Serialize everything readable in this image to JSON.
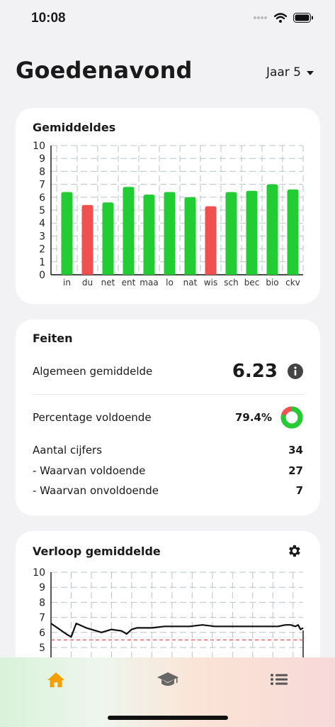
{
  "status": {
    "time": "10:08"
  },
  "header": {
    "greeting": "Goedenavond",
    "year": "Jaar 5"
  },
  "averages": {
    "title": "Gemiddeldes"
  },
  "facts": {
    "title": "Feiten",
    "overall_label": "Algemeen gemiddelde",
    "overall_value": "6.23",
    "percent_label": "Percentage voldoende",
    "percent_value": "79.4%",
    "percent_fraction": 0.794,
    "count_label": "Aantal cijfers",
    "count_value": "34",
    "pass_label": "- Waarvan voldoende",
    "pass_value": "27",
    "fail_label": "- Waarvan onvoldoende",
    "fail_value": "7"
  },
  "trend": {
    "title": "Verloop gemiddelde"
  },
  "colors": {
    "pass": "#22cc33",
    "fail": "#f05050",
    "accent": "#f5a000",
    "grid": "#b9c3c9"
  },
  "icons": {
    "status": [
      "signal-icon",
      "wifi-icon",
      "battery-icon"
    ],
    "info": "info-icon",
    "settings": "gear-icon",
    "tabs": [
      "home-icon",
      "graduation-cap-icon",
      "list-icon"
    ]
  },
  "chart_data": [
    {
      "type": "bar",
      "categories": [
        "in",
        "du",
        "net",
        "ent",
        "maa",
        "lo",
        "nat",
        "wis",
        "sch",
        "bec",
        "bio",
        "ckv"
      ],
      "values": [
        6.4,
        5.4,
        5.6,
        6.8,
        6.2,
        6.4,
        6.0,
        5.3,
        6.4,
        6.5,
        7.0,
        6.6
      ],
      "ylim": [
        0,
        10
      ],
      "yticks": [
        "0",
        "1",
        "2",
        "3",
        "4",
        "5",
        "6",
        "7",
        "8",
        "9",
        "10"
      ],
      "grid": true,
      "pass_threshold": 5.5
    },
    {
      "type": "line",
      "x": [
        0,
        0.06,
        0.08,
        0.1,
        0.14,
        0.2,
        0.24,
        0.28,
        0.3,
        0.32,
        0.34,
        0.36,
        0.4,
        0.45,
        0.5,
        0.55,
        0.6,
        0.65,
        0.7,
        0.75,
        0.8,
        0.85,
        0.9,
        0.93,
        0.95,
        0.97,
        0.98,
        0.99,
        1.0
      ],
      "values": [
        6.6,
        5.9,
        5.7,
        6.6,
        6.3,
        6.0,
        6.2,
        6.1,
        5.9,
        6.2,
        6.3,
        6.3,
        6.3,
        6.4,
        6.4,
        6.4,
        6.5,
        6.4,
        6.4,
        6.4,
        6.4,
        6.4,
        6.4,
        6.5,
        6.5,
        6.4,
        6.5,
        6.2,
        6.3
      ],
      "ylim": [
        5,
        10
      ],
      "yticks": [
        "5",
        "6",
        "7",
        "8",
        "9",
        "10"
      ],
      "grid": true,
      "threshold": 5.5
    }
  ]
}
